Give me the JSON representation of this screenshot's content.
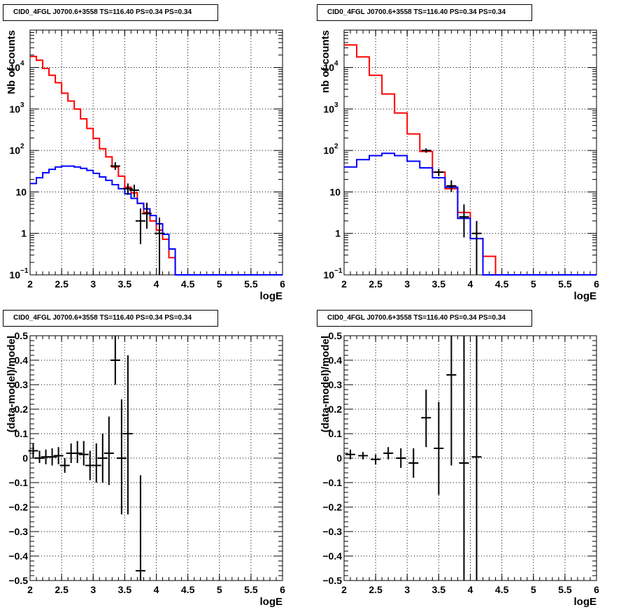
{
  "chart_data": [
    {
      "type": "step-histogram",
      "title": "CID0_4FGL J0700.6+3558 TS=116.40 PS=0.34 PS=0.34",
      "xlabel": "logE",
      "ylabel": "Nb of counts",
      "xlim": [
        2,
        6
      ],
      "ylim": [
        0.1,
        80000
      ],
      "yscale": "log",
      "grid": true,
      "xticks": [
        "2",
        "2.5",
        "3",
        "3.5",
        "4",
        "4.5",
        "5",
        "5.5",
        "6"
      ],
      "yticks": [
        {
          "v": 0.1,
          "label": "10",
          "exp": "−1"
        },
        {
          "v": 1,
          "label": "1"
        },
        {
          "v": 10,
          "label": "10"
        },
        {
          "v": 100,
          "label": "10",
          "exp": "2"
        },
        {
          "v": 1000,
          "label": "10",
          "exp": "3"
        },
        {
          "v": 10000,
          "label": "10",
          "exp": "4"
        }
      ],
      "bin_edges": [
        2.0,
        2.1,
        2.2,
        2.3,
        2.4,
        2.5,
        2.6,
        2.7,
        2.8,
        2.9,
        3.0,
        3.1,
        3.2,
        3.3,
        3.4,
        3.5,
        3.6,
        3.7,
        3.8,
        3.9,
        4.0,
        4.1,
        4.2,
        4.3,
        4.4,
        4.5,
        4.6,
        4.7,
        4.8,
        4.9,
        5.0,
        5.1,
        5.2,
        5.3,
        5.4,
        5.5,
        5.6,
        5.7,
        5.8,
        5.9,
        6.0
      ],
      "series": [
        {
          "name": "",
          "color": "#ff0000",
          "values": [
            18500,
            15000,
            9500,
            6500,
            4300,
            2400,
            1550,
            1000,
            580,
            340,
            195,
            110,
            70,
            40,
            24,
            13,
            9.5,
            5.3,
            3.2,
            2.0,
            1.2,
            0.72,
            0.26,
            0.1,
            0.1,
            0.1,
            0.1,
            0.1,
            0.1,
            0.1,
            0.1,
            0.1,
            0.1,
            0.1,
            0.1,
            0.1,
            0.1,
            0.1,
            0.1,
            0.1
          ]
        },
        {
          "name": "",
          "color": "#0000ff",
          "values": [
            16,
            22,
            29,
            35,
            40,
            42,
            42,
            40,
            37,
            33,
            28,
            23,
            19,
            15,
            12,
            9,
            7,
            5.3,
            3.9,
            2.7,
            1.7,
            0.95,
            0.42,
            0.1,
            0.1,
            0.1,
            0.1,
            0.1,
            0.1,
            0.1,
            0.1,
            0.1,
            0.1,
            0.1,
            0.1,
            0.1,
            0.1,
            0.1,
            0.1,
            0.1
          ]
        }
      ],
      "points": [
        {
          "x": 3.35,
          "y": 42,
          "ylo": 34,
          "yhi": 52
        },
        {
          "x": 3.55,
          "y": 12,
          "ylo": 8.5,
          "yhi": 16
        },
        {
          "x": 3.65,
          "y": 11,
          "ylo": 7.5,
          "yhi": 15
        },
        {
          "x": 3.75,
          "y": 2,
          "ylo": 0.55,
          "yhi": 4
        },
        {
          "x": 3.85,
          "y": 3,
          "ylo": 1.3,
          "yhi": 5.5
        },
        {
          "x": 4.05,
          "y": 1,
          "ylo": 0.1,
          "yhi": 2.4
        }
      ]
    },
    {
      "type": "step-histogram",
      "title": "CID0_4FGL J0700.6+3558 TS=116.40 PS=0.34 PS=0.34",
      "xlabel": "logE",
      "ylabel": "nb of counts",
      "xlim": [
        2,
        6
      ],
      "ylim": [
        0.1,
        80000
      ],
      "yscale": "log",
      "grid": true,
      "xticks": [
        "2",
        "2.5",
        "3",
        "3.5",
        "4",
        "4.5",
        "5",
        "5.5",
        "6"
      ],
      "yticks": [
        {
          "v": 0.1,
          "label": "10",
          "exp": "−1"
        },
        {
          "v": 1,
          "label": "1"
        },
        {
          "v": 10,
          "label": "10"
        },
        {
          "v": 100,
          "label": "10",
          "exp": "2"
        },
        {
          "v": 1000,
          "label": "10",
          "exp": "3"
        },
        {
          "v": 10000,
          "label": "10",
          "exp": "4"
        }
      ],
      "bin_edges": [
        2.0,
        2.2,
        2.4,
        2.6,
        2.8,
        3.0,
        3.2,
        3.4,
        3.6,
        3.8,
        4.0,
        4.2,
        4.4,
        4.6,
        4.8,
        5.0,
        5.2,
        5.4,
        5.6,
        5.8,
        6.0
      ],
      "series": [
        {
          "name": "",
          "color": "#ff0000",
          "values": [
            35000,
            18000,
            6500,
            2300,
            800,
            250,
            95,
            30,
            12,
            3.2,
            0.75,
            0.28,
            0.1,
            0.1,
            0.1,
            0.1,
            0.1,
            0.1,
            0.1,
            0.1
          ]
        },
        {
          "name": "",
          "color": "#0000ff",
          "values": [
            40,
            60,
            75,
            85,
            75,
            55,
            38,
            22,
            13,
            2.3,
            0.75,
            0.1,
            0.1,
            0.1,
            0.1,
            0.1,
            0.1,
            0.1,
            0.1,
            0.1
          ]
        }
      ],
      "points": [
        {
          "x": 3.3,
          "y": 100,
          "ylo": 88,
          "yhi": 112
        },
        {
          "x": 3.5,
          "y": 30,
          "ylo": 24,
          "yhi": 36
        },
        {
          "x": 3.7,
          "y": 14,
          "ylo": 10,
          "yhi": 19
        },
        {
          "x": 3.9,
          "y": 2.5,
          "ylo": 0.8,
          "yhi": 5
        },
        {
          "x": 4.1,
          "y": 1,
          "ylo": 0.1,
          "yhi": 2
        }
      ]
    },
    {
      "type": "scatter",
      "title": "CID0_4FGL J0700.6+3558 TS=116.40 PS=0.34 PS=0.34",
      "xlabel": "logE",
      "ylabel": "(data-model)/model",
      "xlim": [
        2,
        6
      ],
      "ylim": [
        -0.5,
        0.5
      ],
      "grid": true,
      "xticks": [
        "2",
        "2.5",
        "3",
        "3.5",
        "4",
        "4.5",
        "5",
        "5.5",
        "6"
      ],
      "yticks": [
        "−0.5",
        "−0.4",
        "−0.3",
        "−0.2",
        "−0.1",
        "0",
        "0.1",
        "0.2",
        "0.3",
        "0.4",
        "0.5"
      ],
      "points": [
        {
          "x": 2.05,
          "y": 0.03,
          "ylo": 0.0,
          "yhi": 0.06
        },
        {
          "x": 2.15,
          "y": 0.0,
          "ylo": -0.02,
          "yhi": 0.03
        },
        {
          "x": 2.25,
          "y": 0.005,
          "ylo": -0.025,
          "yhi": 0.035
        },
        {
          "x": 2.35,
          "y": 0.005,
          "ylo": -0.03,
          "yhi": 0.04
        },
        {
          "x": 2.45,
          "y": 0.01,
          "ylo": -0.025,
          "yhi": 0.045
        },
        {
          "x": 2.55,
          "y": -0.03,
          "ylo": -0.06,
          "yhi": 0.0
        },
        {
          "x": 2.65,
          "y": 0.02,
          "ylo": -0.02,
          "yhi": 0.06
        },
        {
          "x": 2.75,
          "y": 0.02,
          "ylo": -0.02,
          "yhi": 0.07
        },
        {
          "x": 2.85,
          "y": 0.015,
          "ylo": -0.03,
          "yhi": 0.07
        },
        {
          "x": 2.95,
          "y": -0.03,
          "ylo": -0.09,
          "yhi": 0.03
        },
        {
          "x": 3.05,
          "y": -0.03,
          "ylo": -0.1,
          "yhi": 0.06
        },
        {
          "x": 3.15,
          "y": 0.0,
          "ylo": -0.1,
          "yhi": 0.1
        },
        {
          "x": 3.25,
          "y": 0.02,
          "ylo": -0.11,
          "yhi": 0.17
        },
        {
          "x": 3.35,
          "y": 0.4,
          "ylo": 0.3,
          "yhi": 0.5
        },
        {
          "x": 3.45,
          "y": 0.0,
          "ylo": -0.23,
          "yhi": 0.24
        },
        {
          "x": 3.55,
          "y": 0.1,
          "ylo": -0.23,
          "yhi": 0.42
        },
        {
          "x": 3.75,
          "y": -0.46,
          "ylo": -0.5,
          "yhi": -0.07
        }
      ]
    },
    {
      "type": "scatter",
      "title": "CID0_4FGL J0700.6+3558 TS=116.40 PS=0.34 PS=0.34",
      "xlabel": "logE",
      "ylabel": "(data-model)/model",
      "xlim": [
        2,
        6
      ],
      "ylim": [
        -0.5,
        0.5
      ],
      "grid": true,
      "xticks": [
        "2",
        "2.5",
        "3",
        "3.5",
        "4",
        "4.5",
        "5",
        "5.5",
        "6"
      ],
      "yticks": [
        "−0.5",
        "−0.4",
        "−0.3",
        "−0.2",
        "−0.1",
        "0",
        "0.1",
        "0.2",
        "0.3",
        "0.4",
        "0.5"
      ],
      "points": [
        {
          "x": 2.1,
          "y": 0.015,
          "ylo": -0.005,
          "yhi": 0.035
        },
        {
          "x": 2.3,
          "y": 0.01,
          "ylo": -0.005,
          "yhi": 0.025
        },
        {
          "x": 2.5,
          "y": -0.005,
          "ylo": -0.025,
          "yhi": 0.015
        },
        {
          "x": 2.7,
          "y": 0.02,
          "ylo": -0.005,
          "yhi": 0.045
        },
        {
          "x": 2.9,
          "y": 0.0,
          "ylo": -0.04,
          "yhi": 0.04
        },
        {
          "x": 3.1,
          "y": -0.02,
          "ylo": -0.08,
          "yhi": 0.04
        },
        {
          "x": 3.3,
          "y": 0.165,
          "ylo": 0.045,
          "yhi": 0.28
        },
        {
          "x": 3.5,
          "y": 0.04,
          "ylo": -0.15,
          "yhi": 0.23
        },
        {
          "x": 3.7,
          "y": 0.34,
          "ylo": -0.03,
          "yhi": 0.5
        },
        {
          "x": 3.9,
          "y": -0.02,
          "ylo": -0.5,
          "yhi": 0.5
        },
        {
          "x": 4.1,
          "y": 0.005,
          "ylo": -0.5,
          "yhi": 0.5
        }
      ]
    }
  ]
}
